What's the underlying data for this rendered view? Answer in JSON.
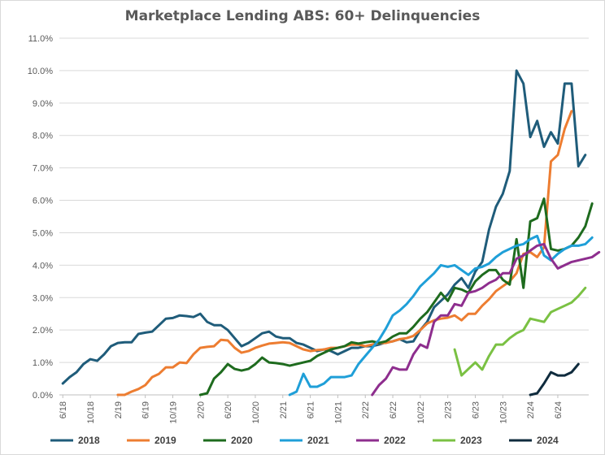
{
  "chart_data": {
    "type": "line",
    "title": "Marketplace Lending ABS: 60+ Delinquencies",
    "xlabel": "",
    "ylabel": "",
    "ylim": [
      0,
      11
    ],
    "y_ticks": [
      "0.0%",
      "1.0%",
      "2.0%",
      "3.0%",
      "4.0%",
      "5.0%",
      "6.0%",
      "7.0%",
      "8.0%",
      "9.0%",
      "10.0%",
      "11.0%"
    ],
    "x_start": "6/18",
    "x_tick_labels": [
      "6/18",
      "10/18",
      "2/19",
      "6/19",
      "10/19",
      "2/20",
      "6/20",
      "10/20",
      "2/21",
      "6/21",
      "10/21",
      "2/22",
      "6/22",
      "10/22",
      "2/23",
      "6/23",
      "10/23",
      "2/24",
      "6/24"
    ],
    "x_tick_step_months": 4,
    "grid": true,
    "legend_position": "bottom",
    "series": [
      {
        "name": "2018",
        "color": "#1F5C7A",
        "start": 0,
        "values": [
          0.35,
          0.55,
          0.7,
          0.95,
          1.1,
          1.05,
          1.25,
          1.5,
          1.6,
          1.62,
          1.62,
          1.88,
          1.92,
          1.95,
          2.15,
          2.35,
          2.37,
          2.45,
          2.43,
          2.4,
          2.5,
          2.25,
          2.15,
          2.15,
          2.0,
          1.75,
          1.5,
          1.6,
          1.75,
          1.9,
          1.95,
          1.8,
          1.75,
          1.75,
          1.6,
          1.55,
          1.45,
          1.35,
          1.4,
          1.35,
          1.25,
          1.35,
          1.45,
          1.45,
          1.5,
          1.5,
          1.55,
          1.62,
          1.65,
          1.72,
          1.62,
          1.65,
          2.0,
          2.25,
          2.7,
          2.9,
          3.1,
          3.4,
          3.6,
          3.3,
          3.8,
          4.1,
          5.1,
          5.8,
          6.2,
          6.9,
          10.0,
          9.6,
          7.95,
          8.45,
          7.65,
          8.1,
          7.75,
          9.6,
          9.6,
          7.05,
          7.4
        ]
      },
      {
        "name": "2019",
        "color": "#ED7D31",
        "start": 8,
        "values": [
          0.0,
          0.0,
          0.1,
          0.18,
          0.3,
          0.55,
          0.65,
          0.85,
          0.85,
          1.0,
          0.98,
          1.25,
          1.45,
          1.48,
          1.5,
          1.7,
          1.68,
          1.45,
          1.3,
          1.35,
          1.45,
          1.52,
          1.58,
          1.6,
          1.62,
          1.6,
          1.5,
          1.4,
          1.35,
          1.38,
          1.4,
          1.45,
          1.45,
          1.5,
          1.55,
          1.55,
          1.5,
          1.55,
          1.6,
          1.6,
          1.65,
          1.72,
          1.75,
          1.82,
          2.0,
          2.2,
          2.3,
          2.35,
          2.38,
          2.45,
          2.3,
          2.5,
          2.5,
          2.75,
          2.95,
          3.2,
          3.35,
          3.5,
          3.75,
          4.35,
          4.4,
          4.25,
          4.55,
          7.2,
          7.4,
          8.2,
          8.75
        ]
      },
      {
        "name": "2020",
        "color": "#1E6B1E",
        "start": 20,
        "values": [
          0.0,
          0.05,
          0.5,
          0.7,
          0.95,
          0.8,
          0.75,
          0.8,
          0.95,
          1.15,
          1.0,
          0.98,
          0.95,
          0.9,
          0.95,
          1.0,
          1.05,
          1.2,
          1.3,
          1.4,
          1.45,
          1.5,
          1.62,
          1.58,
          1.62,
          1.65,
          1.6,
          1.65,
          1.8,
          1.9,
          1.9,
          2.1,
          2.35,
          2.55,
          2.85,
          3.15,
          2.9,
          3.3,
          3.25,
          3.15,
          3.5,
          3.7,
          3.85,
          3.85,
          3.55,
          3.4,
          4.8,
          3.3,
          5.35,
          5.45,
          6.05,
          4.5,
          4.45,
          4.5,
          4.6,
          4.85,
          5.2,
          5.9
        ]
      },
      {
        "name": "2021",
        "color": "#1F9FD8",
        "start": 33,
        "values": [
          0.0,
          0.1,
          0.65,
          0.25,
          0.25,
          0.35,
          0.55,
          0.55,
          0.55,
          0.6,
          0.95,
          1.2,
          1.45,
          1.7,
          2.05,
          2.45,
          2.6,
          2.8,
          3.05,
          3.35,
          3.55,
          3.75,
          4.0,
          3.95,
          4.0,
          3.85,
          3.7,
          3.9,
          3.95,
          4.05,
          4.25,
          4.4,
          4.5,
          4.6,
          4.65,
          4.8,
          4.9,
          4.3,
          4.15,
          4.35,
          4.5,
          4.6,
          4.6,
          4.65,
          4.85
        ]
      },
      {
        "name": "2022",
        "color": "#8E2E8E",
        "start": 45,
        "values": [
          0.0,
          0.3,
          0.5,
          0.85,
          0.78,
          0.78,
          1.25,
          1.55,
          1.45,
          2.25,
          2.45,
          2.45,
          2.8,
          2.75,
          3.15,
          3.2,
          3.3,
          3.45,
          3.55,
          3.75,
          3.75,
          4.2,
          4.3,
          4.45,
          4.6,
          4.65,
          4.2,
          3.9,
          4.0,
          4.1,
          4.15,
          4.2,
          4.25,
          4.4
        ]
      },
      {
        "name": "2023",
        "color": "#7AC143",
        "start": 57,
        "values": [
          1.4,
          0.6,
          0.8,
          1.0,
          0.78,
          1.2,
          1.55,
          1.55,
          1.75,
          1.9,
          2.0,
          2.35,
          2.3,
          2.25,
          2.55,
          2.65,
          2.75,
          2.85,
          3.05,
          3.3
        ]
      },
      {
        "name": "2024",
        "color": "#0F2B3D",
        "start": 68,
        "values": [
          0.0,
          0.05,
          0.35,
          0.7,
          0.6,
          0.6,
          0.7,
          0.95
        ]
      }
    ]
  }
}
